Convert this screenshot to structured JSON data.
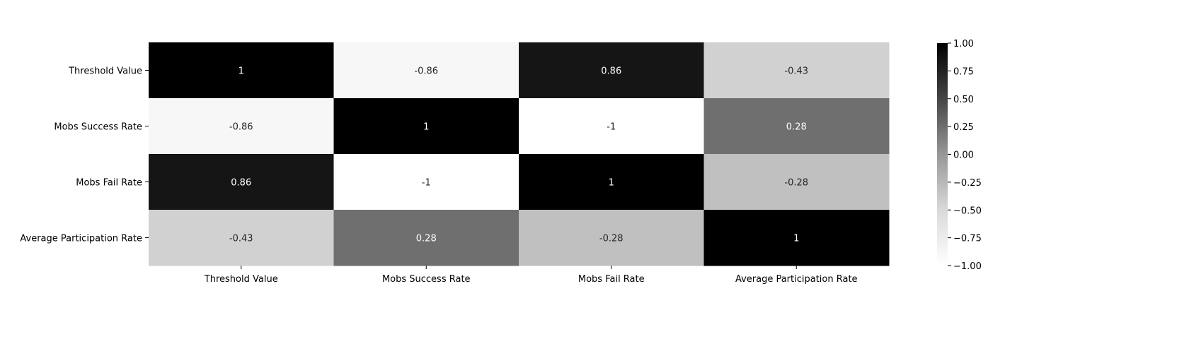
{
  "chart_data": {
    "type": "heatmap",
    "title": "",
    "xlabel": "",
    "ylabel": "",
    "x_categories": [
      "Threshold Value",
      "Mobs Success Rate",
      "Mobs Fail Rate",
      "Average Participation Rate"
    ],
    "y_categories": [
      "Threshold Value",
      "Mobs Success Rate",
      "Mobs Fail Rate",
      "Average Participation Rate"
    ],
    "values": [
      [
        1,
        -0.86,
        0.86,
        -0.43
      ],
      [
        -0.86,
        1,
        -1,
        0.28
      ],
      [
        0.86,
        -1,
        1,
        -0.28
      ],
      [
        -0.43,
        0.28,
        -0.28,
        1
      ]
    ],
    "annotations": [
      [
        "1",
        "-0.86",
        "0.86",
        "-0.43"
      ],
      [
        "-0.86",
        "1",
        "-1",
        "0.28"
      ],
      [
        "0.86",
        "-1",
        "1",
        "-0.28"
      ],
      [
        "-0.43",
        "0.28",
        "-0.28",
        "1"
      ]
    ],
    "colormap": {
      "name": "Greys",
      "low_color": "#ffffff",
      "high_color": "#000000",
      "vmin": -1,
      "vmax": 1
    },
    "colorbar": {
      "ticks": [
        1.0,
        0.75,
        0.5,
        0.25,
        0.0,
        -0.25,
        -0.5,
        -0.75,
        -1.0
      ],
      "tick_labels": [
        "1.00",
        "0.75",
        "0.50",
        "0.25",
        "0.00",
        "−0.25",
        "−0.50",
        "−0.75",
        "−1.00"
      ]
    },
    "grid": false
  }
}
